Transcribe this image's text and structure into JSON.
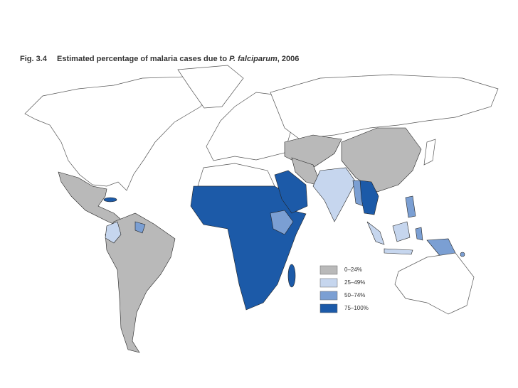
{
  "figure": {
    "label": "Fig. 3.4",
    "title": "Estimated percentage of malaria cases due to ",
    "species": "P. falciparum",
    "suffix": ", 2006"
  },
  "legend": [
    {
      "label": "0–24%",
      "color": "#b9b9b9"
    },
    {
      "label": "25–49%",
      "color": "#c6d6ee"
    },
    {
      "label": "50–74%",
      "color": "#7b9fd3"
    },
    {
      "label": "75–100%",
      "color": "#1c5aa8"
    }
  ]
}
